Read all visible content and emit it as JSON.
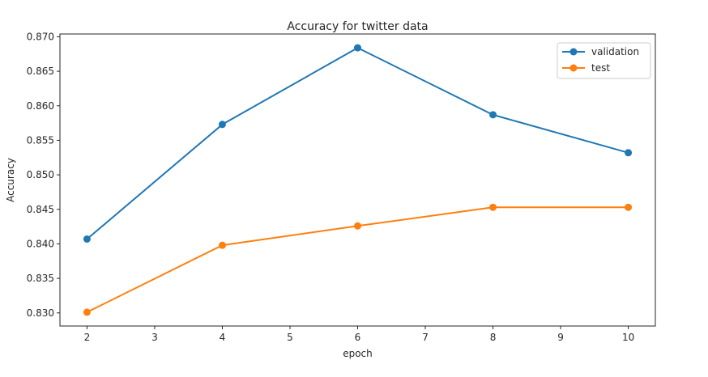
{
  "chart_data": {
    "type": "line",
    "title": "Accuracy for twitter data",
    "xlabel": "epoch",
    "ylabel": "Accuracy",
    "x": [
      2,
      4,
      6,
      8,
      10
    ],
    "xlim": [
      1.6,
      10.4
    ],
    "ylim": [
      0.8281,
      0.8704
    ],
    "xticks": [
      2,
      3,
      4,
      5,
      6,
      7,
      8,
      9,
      10
    ],
    "yticks": [
      0.83,
      0.835,
      0.84,
      0.845,
      0.85,
      0.855,
      0.86,
      0.865,
      0.87
    ],
    "ytick_labels": [
      "0.830",
      "0.835",
      "0.840",
      "0.845",
      "0.850",
      "0.855",
      "0.860",
      "0.865",
      "0.870"
    ],
    "grid": false,
    "legend_position": "top-right",
    "series": [
      {
        "name": "validation",
        "color": "#1f77b4",
        "values": [
          0.8407,
          0.8573,
          0.8684,
          0.8587,
          0.8532
        ]
      },
      {
        "name": "test",
        "color": "#ff7f0e",
        "values": [
          0.8301,
          0.8398,
          0.8426,
          0.8453,
          0.8453
        ]
      }
    ]
  }
}
